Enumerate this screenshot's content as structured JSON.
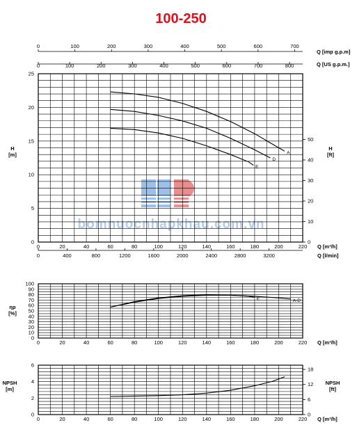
{
  "chart_data": {
    "type": "line",
    "title": "100-250",
    "watermark_text": "bomnuocnhapkhau.com.vn",
    "top_axes": [
      {
        "label": "Q [imp g.p.m]",
        "range": [
          0,
          700
        ],
        "ticks": [
          0,
          100,
          200,
          300,
          400,
          500,
          600,
          700
        ]
      },
      {
        "label": "Q [US g.p.m.]",
        "range": [
          0,
          840
        ],
        "ticks": [
          0,
          100,
          200,
          300,
          400,
          500,
          600,
          700,
          800
        ]
      }
    ],
    "panels": [
      {
        "id": "head",
        "xlabel": "Q [m³/h]",
        "xlim": [
          0,
          220
        ],
        "xticks": [
          0,
          20,
          40,
          60,
          80,
          100,
          120,
          140,
          160,
          180,
          200,
          220
        ],
        "secondary_x": {
          "label": "Q [l/min]",
          "ticks": [
            0,
            400,
            800,
            1200,
            1600,
            2000,
            2400,
            2800,
            3200
          ]
        },
        "ylabel": "H\n[m]",
        "ylim": [
          0,
          25
        ],
        "yticks": [
          0,
          5,
          10,
          15,
          20,
          25
        ],
        "y2label": "H\n[ft]",
        "y2ticks": [
          0,
          10,
          20,
          30,
          40,
          50
        ],
        "grid": true,
        "series": [
          {
            "name": "A",
            "x": [
              60,
              80,
              100,
              120,
              140,
              160,
              180,
              200,
              205
            ],
            "y": [
              22.3,
              22.0,
              21.5,
              20.6,
              19.4,
              17.9,
              16.1,
              14.0,
              13.5
            ]
          },
          {
            "name": "D",
            "x": [
              60,
              80,
              100,
              120,
              140,
              160,
              180,
              193
            ],
            "y": [
              19.7,
              19.4,
              18.8,
              18.0,
              16.9,
              15.4,
              13.7,
              12.5
            ]
          },
          {
            "name": "E",
            "x": [
              60,
              80,
              100,
              120,
              140,
              160,
              175,
              179
            ],
            "y": [
              16.9,
              16.7,
              16.2,
              15.4,
              14.3,
              13.0,
              11.9,
              11.4
            ]
          }
        ]
      },
      {
        "id": "efficiency",
        "xlabel": "Q [m³/h]",
        "xlim": [
          0,
          220
        ],
        "xticks": [
          0,
          20,
          40,
          60,
          80,
          100,
          120,
          140,
          160,
          180,
          200,
          220
        ],
        "ylabel": "ηp\n[%]",
        "ylim": [
          0,
          100
        ],
        "yticks": [
          0,
          10,
          20,
          30,
          40,
          50,
          60,
          70,
          80,
          90,
          100
        ],
        "grid": true,
        "series": [
          {
            "name": "A-D",
            "x": [
              60,
              80,
              100,
              120,
              140,
              160,
              180,
              200,
              210
            ],
            "y": [
              57,
              66,
              73,
              77,
              79,
              79,
              77,
              74,
              72
            ]
          },
          {
            "name": "E",
            "x": [
              60,
              80,
              100,
              120,
              140,
              160,
              175,
              180
            ],
            "y": [
              57,
              67,
              74,
              78,
              80,
              79,
              77,
              75
            ]
          }
        ]
      },
      {
        "id": "npsh",
        "xlabel": "Q [m³/h]",
        "xlim": [
          0,
          220
        ],
        "xticks": [
          0,
          20,
          40,
          60,
          80,
          100,
          120,
          140,
          160,
          180,
          200,
          220
        ],
        "ylabel": "NPSH\n[m]",
        "ylim": [
          0,
          6
        ],
        "yticks": [
          0,
          2,
          4,
          6
        ],
        "y2label": "NPSH\n[ft]",
        "y2ticks": [
          0,
          6,
          12,
          18
        ],
        "grid": true,
        "series": [
          {
            "name": "NPSH",
            "x": [
              60,
              80,
              100,
              120,
              140,
              160,
              180,
              195,
              205
            ],
            "y": [
              2.2,
              2.25,
              2.3,
              2.4,
              2.6,
              2.95,
              3.5,
              4.05,
              4.6
            ]
          }
        ]
      }
    ]
  }
}
